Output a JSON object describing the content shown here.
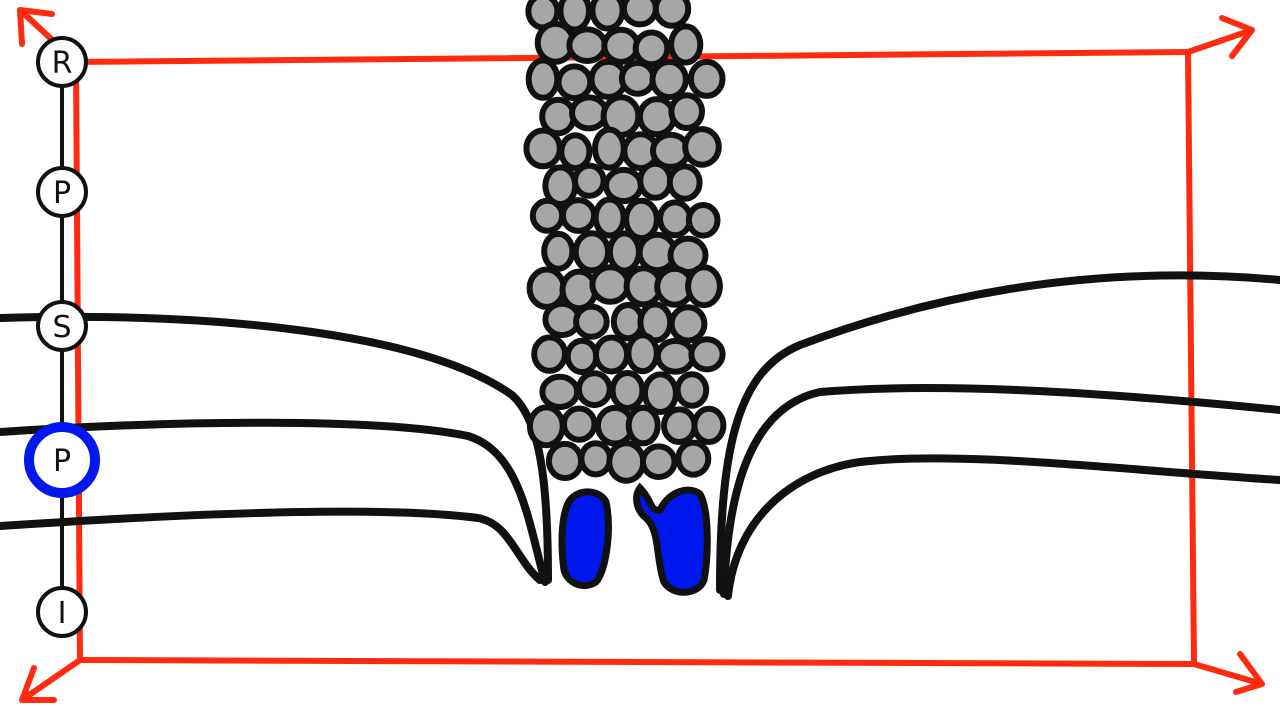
{
  "colors": {
    "background": "#ffffff",
    "frame": "#ff2a10",
    "ink": "#111111",
    "cell_fill": "#a6a6a6",
    "highlight": "#0018ee",
    "node_fill": "#ffffff"
  },
  "timeline": {
    "stages": [
      "R",
      "P",
      "S",
      "P",
      "I"
    ],
    "active_index": 3
  }
}
